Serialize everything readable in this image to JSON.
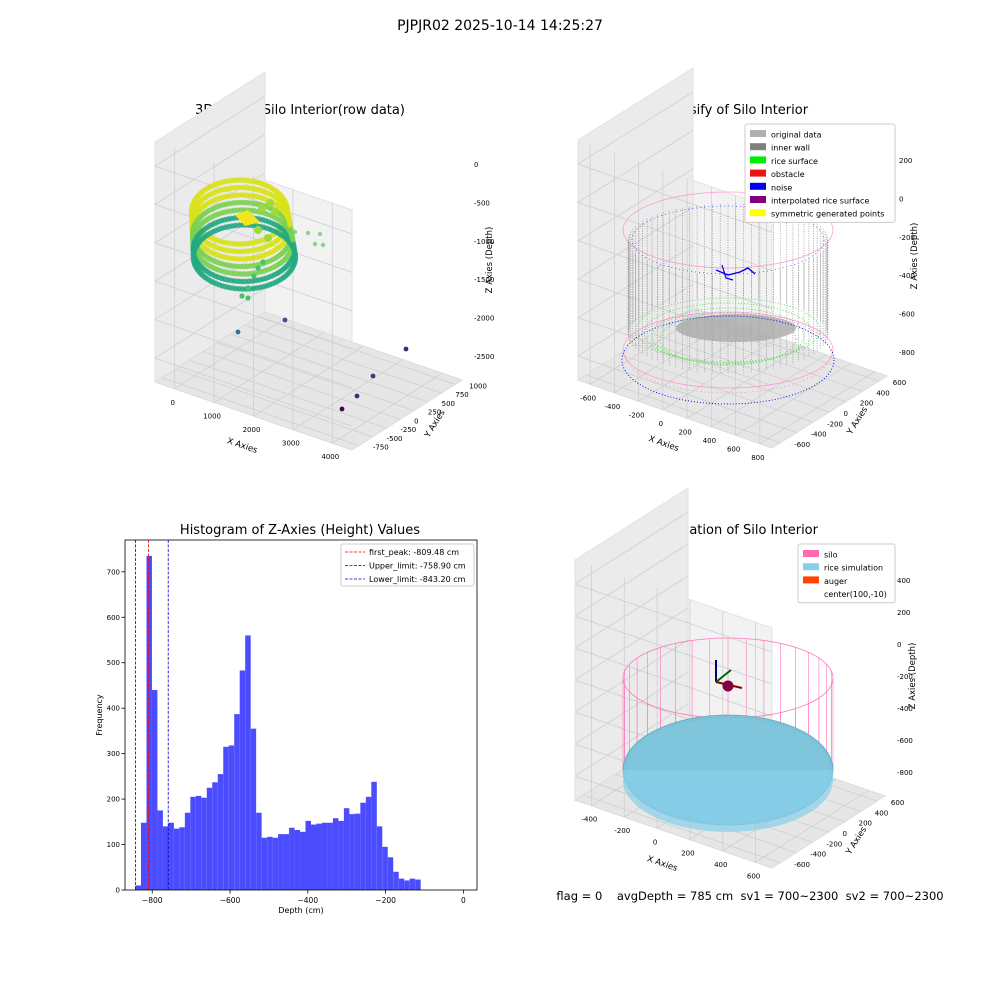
{
  "suptitle": "PJPJR02 2025-10-14 14:25:27",
  "status_line": "flag = 0    avgDepth = 785 cm  sv1 = 700~2300  sv2 = 700~2300",
  "chart_data": [
    {
      "type": "scatter3d",
      "title": "3D Plot of Silo Interior(row data)",
      "xlabel": "X Axies",
      "ylabel": "Y Axies",
      "zlabel": "Z Axies (Depth)",
      "xticks": [
        "0",
        "1000",
        "2000",
        "3000",
        "4000"
      ],
      "yticks": [
        "-750",
        "-500",
        "-250",
        "0",
        "250",
        "500",
        "750",
        "1000"
      ],
      "zticks": [
        "0",
        "-500",
        "-1000",
        "-1500",
        "-2000",
        "-2500"
      ],
      "colormap": "viridis"
    },
    {
      "type": "scatter3d",
      "title": "3D classify of Silo Interior",
      "xlabel": "X Axies",
      "ylabel": "Y Axies",
      "zlabel": "Z Axies (Depth)",
      "xticks": [
        "-600",
        "-400",
        "-200",
        "0",
        "200",
        "400",
        "600",
        "800"
      ],
      "yticks": [
        "-600",
        "-400",
        "-200",
        "0",
        "200",
        "400",
        "600"
      ],
      "zticks": [
        "200",
        "0",
        "-200",
        "-400",
        "-600",
        "-800"
      ],
      "legend": [
        {
          "label": "original data",
          "color": "#b0b0b0"
        },
        {
          "label": "inner wall",
          "color": "#808080"
        },
        {
          "label": "rice surface",
          "color": "#00ee00"
        },
        {
          "label": "obstacle",
          "color": "#ee1111"
        },
        {
          "label": "noise",
          "color": "#0000ee"
        },
        {
          "label": "interpolated rice surface",
          "color": "#800080"
        },
        {
          "label": "symmetric generated points",
          "color": "#ffff00"
        }
      ],
      "legend_position": "top-right"
    },
    {
      "type": "bar",
      "title": "Histogram of Z-Axies (Height) Values",
      "xlabel": "Depth (cm)",
      "ylabel": "Frequency",
      "xlim": [
        -870,
        35
      ],
      "ylim": [
        0,
        770
      ],
      "xticks": [
        -800,
        -600,
        -400,
        -200,
        0
      ],
      "xtick_labels": [
        "−800",
        "−600",
        "−400",
        "−200",
        "0"
      ],
      "yticks": [
        0,
        100,
        200,
        300,
        400,
        500,
        600,
        700
      ],
      "bar_color": "#4c4cff",
      "bin_start": -843,
      "bin_width": 14.1,
      "values": [
        10,
        148,
        735,
        440,
        175,
        140,
        148,
        135,
        138,
        170,
        205,
        207,
        203,
        225,
        237,
        255,
        315,
        318,
        387,
        483,
        560,
        355,
        170,
        115,
        117,
        115,
        123,
        123,
        137,
        132,
        128,
        152,
        144,
        146,
        148,
        148,
        158,
        152,
        180,
        167,
        168,
        192,
        205,
        238,
        140,
        95,
        72,
        40,
        25,
        21,
        25,
        23
      ],
      "lines": [
        {
          "label": "first_peak: -809.48 cm",
          "x": -809.48,
          "color": "#ee0000"
        },
        {
          "label": "Upper_limit: -758.90 cm",
          "x": -758.9,
          "color": "#0000cc"
        },
        {
          "label": "Lower_limit: -843.20 cm",
          "x": -843.2,
          "color": "#0000cc"
        }
      ],
      "legend_position": "top-right"
    },
    {
      "type": "scatter3d",
      "title": "3D simulation of Silo Interior",
      "xlabel": "X Axies",
      "ylabel": "Y Axies",
      "zlabel": "Z Axies (Depth)",
      "xticks": [
        "-400",
        "-200",
        "0",
        "200",
        "400",
        "600"
      ],
      "yticks": [
        "-600",
        "-400",
        "-200",
        "0",
        "200",
        "400",
        "600"
      ],
      "zticks": [
        "400",
        "200",
        "0",
        "-200",
        "-400",
        "-600",
        "-800"
      ],
      "legend": [
        {
          "label": "silo",
          "color": "#ff69b4"
        },
        {
          "label": "rice simulation",
          "color": "#87ceeb"
        },
        {
          "label": "auger",
          "color": "#ff4500"
        },
        {
          "label": "center(100,-10)",
          "color": ""
        }
      ],
      "legend_position": "top-right"
    }
  ]
}
